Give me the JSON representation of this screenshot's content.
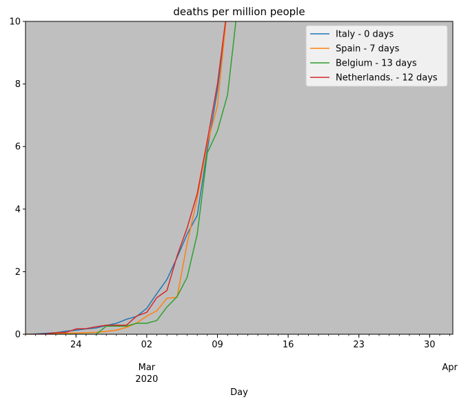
{
  "chart_data": {
    "type": "line",
    "title": "deaths per million people",
    "xlabel": "Day",
    "ylabel": "",
    "ylim": [
      0,
      10
    ],
    "y_ticks": [
      0,
      2,
      4,
      6,
      8,
      10
    ],
    "xlim": [
      "2020-02-19",
      "2020-03-31"
    ],
    "x_major_ticks": [
      {
        "date": "2020-02-24",
        "label": "24"
      },
      {
        "date": "2020-03-02",
        "label": "02"
      },
      {
        "date": "2020-03-09",
        "label": "09"
      },
      {
        "date": "2020-03-16",
        "label": "16"
      },
      {
        "date": "2020-03-23",
        "label": "23"
      },
      {
        "date": "2020-03-30",
        "label": "30"
      }
    ],
    "x_secondary_labels": [
      {
        "date": "2020-03-02",
        "label": "Mar"
      },
      {
        "date": "2020-03-02",
        "label": "2020"
      },
      {
        "date": "2020-04-01",
        "label": "Apr"
      }
    ],
    "grid": false,
    "background": "#bfbfbf",
    "legend_position": "top-right",
    "series": [
      {
        "name": "Italy - 0 days",
        "color": "#1f77b4",
        "x": [
          "2020-02-19",
          "2020-02-20",
          "2020-02-21",
          "2020-02-22",
          "2020-02-23",
          "2020-02-24",
          "2020-02-25",
          "2020-02-26",
          "2020-02-27",
          "2020-02-28",
          "2020-02-29",
          "2020-03-01",
          "2020-03-02",
          "2020-03-03",
          "2020-03-04",
          "2020-03-05",
          "2020-03-06",
          "2020-03-07",
          "2020-03-08",
          "2020-03-09",
          "2020-03-10"
        ],
        "y": [
          0,
          0.01,
          0.03,
          0.05,
          0.1,
          0.13,
          0.17,
          0.2,
          0.28,
          0.35,
          0.48,
          0.57,
          0.83,
          1.3,
          1.75,
          2.45,
          3.2,
          3.8,
          5.9,
          7.8,
          10.5
        ]
      },
      {
        "name": "Spain - 7 days",
        "color": "#ff7f0e",
        "x": [
          "2020-02-19",
          "2020-02-20",
          "2020-02-21",
          "2020-02-22",
          "2020-02-23",
          "2020-02-24",
          "2020-02-25",
          "2020-02-26",
          "2020-02-27",
          "2020-02-28",
          "2020-02-29",
          "2020-03-01",
          "2020-03-02",
          "2020-03-03",
          "2020-03-04",
          "2020-03-05",
          "2020-03-06",
          "2020-03-07",
          "2020-03-08",
          "2020-03-09",
          "2020-03-10"
        ],
        "y": [
          0,
          0,
          0,
          0.02,
          0.03,
          0.04,
          0.05,
          0.06,
          0.09,
          0.13,
          0.22,
          0.36,
          0.58,
          0.75,
          1.15,
          1.18,
          2.9,
          4.35,
          6.1,
          7.3,
          10.5
        ]
      },
      {
        "name": "Belgium - 13 days",
        "color": "#2ca02c",
        "x": [
          "2020-02-19",
          "2020-02-20",
          "2020-02-21",
          "2020-02-22",
          "2020-02-23",
          "2020-02-24",
          "2020-02-25",
          "2020-02-26",
          "2020-02-27",
          "2020-02-28",
          "2020-02-29",
          "2020-03-01",
          "2020-03-02",
          "2020-03-03",
          "2020-03-04",
          "2020-03-05",
          "2020-03-06",
          "2020-03-07",
          "2020-03-08",
          "2020-03-09",
          "2020-03-10",
          "2020-03-11"
        ],
        "y": [
          0,
          0,
          0,
          0,
          0,
          0,
          0,
          0,
          0.26,
          0.26,
          0.26,
          0.35,
          0.35,
          0.44,
          0.87,
          1.2,
          1.82,
          3.2,
          5.8,
          6.5,
          7.65,
          10.5
        ]
      },
      {
        "name": "Netherlands. - 12 days",
        "color": "#d62728",
        "x": [
          "2020-02-19",
          "2020-02-20",
          "2020-02-21",
          "2020-02-22",
          "2020-02-23",
          "2020-02-24",
          "2020-02-25",
          "2020-02-26",
          "2020-02-27",
          "2020-02-28",
          "2020-02-29",
          "2020-03-01",
          "2020-03-02",
          "2020-03-03",
          "2020-03-04",
          "2020-03-05",
          "2020-03-06",
          "2020-03-07",
          "2020-03-08",
          "2020-03-09",
          "2020-03-10"
        ],
        "y": [
          0,
          0,
          0.01,
          0.05,
          0.06,
          0.17,
          0.18,
          0.24,
          0.29,
          0.29,
          0.29,
          0.58,
          0.7,
          1.17,
          1.4,
          2.5,
          3.4,
          4.5,
          6.2,
          8.0,
          10.5
        ]
      }
    ]
  }
}
